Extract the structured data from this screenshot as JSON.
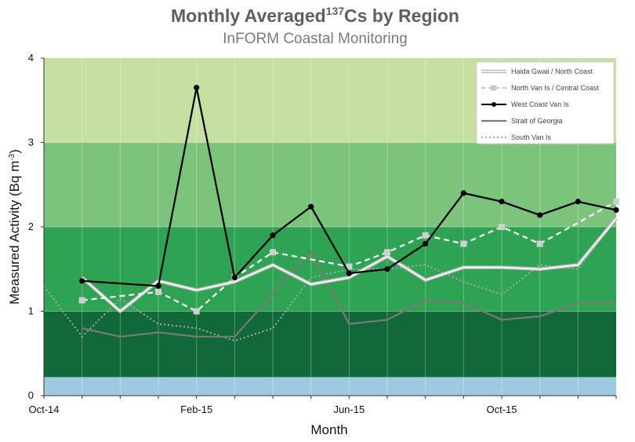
{
  "chart_data": {
    "type": "line",
    "title_main": "Monthly Averaged",
    "title_sup": "137",
    "title_rest": "Cs by Region",
    "subtitle": "InFORM Coastal Monitoring",
    "xlabel": "Month",
    "ylabel_main": "Measured Activity (Bq m",
    "ylabel_sup": "-3",
    "ylabel_end": ")",
    "ylim": [
      0,
      4
    ],
    "xlim": [
      0,
      15
    ],
    "y_ticks": [
      "0",
      "1",
      "2",
      "3",
      "4"
    ],
    "x_ticks": [
      {
        "x": 0,
        "label": "Oct-14"
      },
      {
        "x": 4,
        "label": "Feb-15"
      },
      {
        "x": 8,
        "label": "Jun-15"
      },
      {
        "x": 12,
        "label": "Oct-15"
      }
    ],
    "bands": [
      {
        "from": 0,
        "to": 0.22,
        "color": "#9ecae1"
      },
      {
        "from": 0.22,
        "to": 1,
        "color": "#116939"
      },
      {
        "from": 1,
        "to": 2,
        "color": "#2ea353"
      },
      {
        "from": 2,
        "to": 3,
        "color": "#7cc47c"
      },
      {
        "from": 3,
        "to": 4,
        "color": "#c5e0a0"
      }
    ],
    "grid": true,
    "legend_position": "top-right",
    "series": [
      {
        "name": "Haida Gwaii / North Coast",
        "style": "double",
        "color": "#c8c8c8",
        "points": [
          [
            1,
            1.4
          ],
          [
            2,
            1.0
          ],
          [
            3,
            1.36
          ],
          [
            4,
            1.25
          ],
          [
            5,
            1.35
          ],
          [
            6,
            1.55
          ],
          [
            7,
            1.32
          ],
          [
            8,
            1.4
          ],
          [
            9,
            1.65
          ],
          [
            10,
            1.37
          ],
          [
            11,
            1.52
          ],
          [
            12,
            1.52
          ],
          [
            13,
            1.5
          ],
          [
            14,
            1.55
          ],
          [
            15,
            2.1
          ]
        ]
      },
      {
        "name": "North Van Is / Central Coast",
        "style": "dashed-square",
        "color": "#e6e6e6",
        "points": [
          [
            1,
            1.13
          ],
          [
            3,
            1.23
          ],
          [
            4,
            1.0
          ],
          [
            5,
            1.4
          ],
          [
            6,
            1.7
          ],
          [
            8,
            1.53
          ],
          [
            9,
            1.7
          ],
          [
            10,
            1.9
          ],
          [
            11,
            1.8
          ],
          [
            12,
            2.0
          ],
          [
            13,
            1.8
          ],
          [
            15,
            2.3
          ]
        ]
      },
      {
        "name": "West Coast Van Is",
        "style": "solid-dot",
        "color": "#000000",
        "points": [
          [
            1,
            1.36
          ],
          [
            3,
            1.3
          ],
          [
            4,
            3.65
          ],
          [
            5,
            1.4
          ],
          [
            6,
            1.9
          ],
          [
            7,
            2.24
          ],
          [
            8,
            1.45
          ],
          [
            9,
            1.5
          ],
          [
            10,
            1.8
          ],
          [
            11,
            2.4
          ],
          [
            12,
            2.3
          ],
          [
            13,
            2.14
          ],
          [
            14,
            2.3
          ],
          [
            15,
            2.2
          ]
        ]
      },
      {
        "name": "Strait of Georgia",
        "style": "solid",
        "color": "#7a7a7a",
        "points": [
          [
            1,
            0.8
          ],
          [
            2,
            0.7
          ],
          [
            3,
            0.75
          ],
          [
            4,
            0.7
          ],
          [
            5,
            0.7
          ],
          [
            6,
            1.2
          ],
          [
            7,
            1.7
          ],
          [
            8,
            0.85
          ],
          [
            9,
            0.9
          ],
          [
            10,
            1.13
          ],
          [
            11,
            1.1
          ],
          [
            12,
            0.9
          ],
          [
            13,
            0.94
          ],
          [
            14,
            1.1
          ],
          [
            15,
            1.1
          ]
        ]
      },
      {
        "name": "South Van Is",
        "style": "dotted",
        "color": "#a8a8a8",
        "points": [
          [
            0,
            1.3
          ],
          [
            1,
            0.7
          ],
          [
            2,
            1.15
          ],
          [
            3,
            0.85
          ],
          [
            4,
            0.8
          ],
          [
            5,
            0.65
          ],
          [
            6,
            0.8
          ],
          [
            7,
            1.4
          ],
          [
            8,
            1.5
          ],
          [
            9,
            1.5
          ],
          [
            10,
            1.55
          ],
          [
            11,
            1.35
          ],
          [
            12,
            1.2
          ],
          [
            13,
            1.55
          ],
          [
            14,
            1.5
          ],
          [
            15,
            2.12
          ]
        ]
      }
    ]
  }
}
